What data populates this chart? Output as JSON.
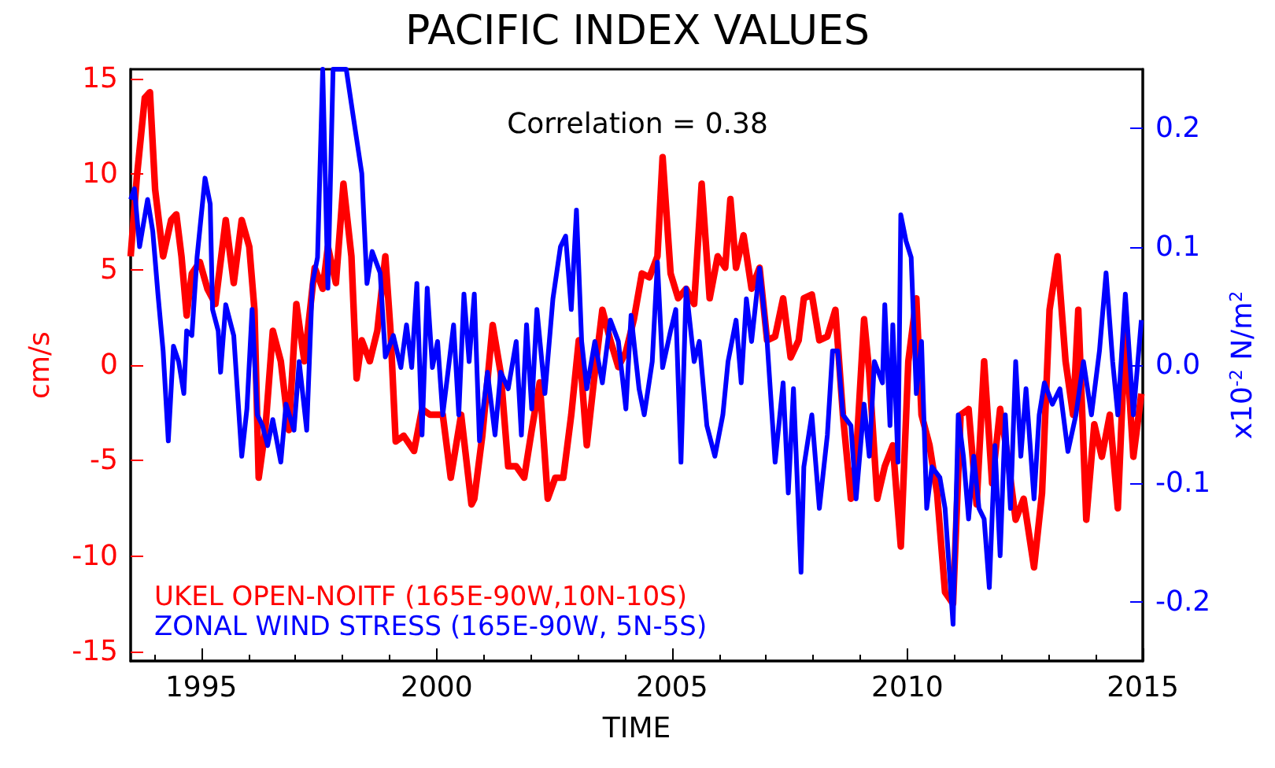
{
  "chart_data": {
    "type": "line",
    "title": "PACIFIC INDEX VALUES",
    "xlabel": "TIME",
    "ylabel": "cm/s",
    "y2label": "x10$^{-2}$ N/m$^{2}$",
    "annotations": [
      "Correlation = 0.38"
    ],
    "xlim": [
      1993.5,
      2015
    ],
    "xticks": [
      1995,
      2000,
      2005,
      2010,
      2015
    ],
    "ylim": [
      -15.5,
      15.5
    ],
    "yticks": [
      -15,
      -10,
      -5,
      0,
      5,
      10,
      15
    ],
    "y2lim": [
      -0.25,
      0.25
    ],
    "y2ticks": [
      -0.2,
      -0.1,
      {
        "value": 0,
        "label": "0.0"
      },
      0.1,
      0.2
    ],
    "grid": false,
    "legend": "bottom left",
    "marker": "none",
    "line_style": "solid",
    "series": [
      {
        "name": "UKEL OPEN-NOITF (165E-90W,10N-10S)",
        "color": "#ff0000",
        "x": [
          1993.5,
          1993.63,
          1993.8,
          1993.91,
          1994.02,
          1994.19,
          1994.36,
          1994.47,
          1994.58,
          1994.69,
          1994.8,
          1994.97,
          1995.13,
          1995.3,
          1995.52,
          1995.69,
          1995.86,
          1996.02,
          1996.13,
          1996.22,
          1996.36,
          1996.52,
          1996.69,
          1996.86,
          1997.02,
          1997.19,
          1997.41,
          1997.58,
          1997.69,
          1997.86,
          1998.02,
          1998.19,
          1998.3,
          1998.41,
          1998.58,
          1998.74,
          1998.91,
          1999.02,
          1999.13,
          1999.3,
          1999.52,
          1999.69,
          1999.86,
          2000.13,
          2000.3,
          2000.52,
          2000.74,
          2000.8,
          2000.97,
          2001.19,
          2001.36,
          2001.52,
          2001.69,
          2001.86,
          2002.02,
          2002.19,
          2002.36,
          2002.52,
          2002.69,
          2002.86,
          2003.02,
          2003.19,
          2003.36,
          2003.52,
          2003.69,
          2003.86,
          2004.02,
          2004.19,
          2004.36,
          2004.52,
          2004.69,
          2004.8,
          2004.97,
          2005.13,
          2005.3,
          2005.47,
          2005.63,
          2005.8,
          2005.97,
          2006.13,
          2006.24,
          2006.36,
          2006.52,
          2006.69,
          2006.86,
          2007.02,
          2007.19,
          2007.36,
          2007.52,
          2007.69,
          2007.8,
          2007.97,
          2008.13,
          2008.3,
          2008.47,
          2008.63,
          2008.8,
          2008.91,
          2009.08,
          2009.19,
          2009.36,
          2009.52,
          2009.69,
          2009.86,
          2010.02,
          2010.19,
          2010.3,
          2010.47,
          2010.63,
          2010.8,
          2010.97,
          2011.13,
          2011.3,
          2011.47,
          2011.63,
          2011.8,
          2011.97,
          2012.13,
          2012.3,
          2012.47,
          2012.69,
          2012.86,
          2013.02,
          2013.19,
          2013.36,
          2013.52,
          2013.63,
          2013.8,
          2013.97,
          2014.13,
          2014.3,
          2014.47,
          2014.63,
          2014.8,
          2014.97
        ],
        "values": [
          5.7,
          9.8,
          14.0,
          14.3,
          9.2,
          5.7,
          7.6,
          7.9,
          5.7,
          2.6,
          4.8,
          5.4,
          4.0,
          3.2,
          7.6,
          4.3,
          7.6,
          6.2,
          2.9,
          -5.9,
          -3.4,
          1.8,
          0.2,
          -3.4,
          3.2,
          0.2,
          5.1,
          4.0,
          6.2,
          4.3,
          9.5,
          5.7,
          -0.7,
          1.3,
          0.2,
          1.8,
          5.7,
          1.8,
          -4.0,
          -3.7,
          -4.5,
          -2.3,
          -2.6,
          -2.6,
          -5.9,
          -2.6,
          -7.3,
          -7.0,
          -3.7,
          2.1,
          -0.4,
          -5.3,
          -5.3,
          -5.9,
          -3.4,
          -0.9,
          -7.0,
          -5.9,
          -5.9,
          -2.6,
          1.3,
          -4.2,
          -0.4,
          2.9,
          1.3,
          -0.1,
          0.7,
          2.4,
          4.8,
          4.6,
          5.7,
          10.9,
          4.8,
          3.5,
          4.0,
          3.2,
          9.5,
          3.5,
          5.7,
          5.1,
          8.7,
          5.1,
          6.8,
          4.0,
          5.1,
          1.3,
          1.5,
          3.5,
          0.4,
          1.3,
          3.5,
          3.7,
          1.3,
          1.5,
          2.9,
          -2.6,
          -7.0,
          -4.8,
          2.4,
          -0.4,
          -7.0,
          -5.3,
          -4.2,
          -9.5,
          0.2,
          3.5,
          -2.6,
          -4.2,
          -6.7,
          -11.9,
          -12.5,
          -2.6,
          -2.3,
          -7.3,
          0.2,
          -6.2,
          -2.3,
          -4.8,
          -8.1,
          -7.0,
          -10.6,
          -6.7,
          2.9,
          5.7,
          0.2,
          -2.6,
          2.9,
          -8.1,
          -3.1,
          -4.8,
          -2.6,
          -7.5,
          1.8,
          -4.8,
          -1.5
        ]
      },
      {
        "name": "ZONAL WIND STRESS (165E-90W, 5N-5S)",
        "color": "#0000ff",
        "axis": "y2",
        "x": [
          1993.5,
          1993.58,
          1993.69,
          1993.86,
          1993.97,
          1994.08,
          1994.19,
          1994.3,
          1994.41,
          1994.52,
          1994.63,
          1994.69,
          1994.8,
          1994.91,
          1995.08,
          1995.19,
          1995.24,
          1995.36,
          1995.41,
          1995.52,
          1995.69,
          1995.86,
          1995.97,
          1996.08,
          1996.19,
          1996.3,
          1996.41,
          1996.52,
          1996.69,
          1996.8,
          1996.97,
          1997.08,
          1997.24,
          1997.36,
          1997.47,
          1997.58,
          1997.69,
          1997.8,
          1997.97,
          1998.08,
          1998.24,
          1998.41,
          1998.52,
          1998.63,
          1998.8,
          1998.91,
          1999.08,
          1999.24,
          1999.36,
          1999.47,
          1999.58,
          1999.69,
          1999.8,
          1999.91,
          2000.02,
          2000.13,
          2000.24,
          2000.36,
          2000.47,
          2000.58,
          2000.69,
          2000.8,
          2000.91,
          2001.08,
          2001.24,
          2001.36,
          2001.52,
          2001.69,
          2001.8,
          2001.91,
          2002.02,
          2002.13,
          2002.3,
          2002.47,
          2002.63,
          2002.74,
          2002.86,
          2002.97,
          2003.08,
          2003.19,
          2003.36,
          2003.52,
          2003.69,
          2003.86,
          2004.02,
          2004.13,
          2004.3,
          2004.41,
          2004.58,
          2004.69,
          2004.8,
          2004.97,
          2005.08,
          2005.19,
          2005.3,
          2005.47,
          2005.58,
          2005.74,
          2005.91,
          2006.08,
          2006.19,
          2006.36,
          2006.47,
          2006.58,
          2006.69,
          2006.86,
          2007.02,
          2007.19,
          2007.36,
          2007.47,
          2007.58,
          2007.74,
          2007.8,
          2007.97,
          2008.13,
          2008.3,
          2008.41,
          2008.52,
          2008.63,
          2008.8,
          2008.91,
          2009.08,
          2009.19,
          2009.3,
          2009.47,
          2009.52,
          2009.63,
          2009.69,
          2009.8,
          2009.86,
          2009.97,
          2010.08,
          2010.19,
          2010.3,
          2010.41,
          2010.52,
          2010.69,
          2010.8,
          2010.97,
          2011.08,
          2011.19,
          2011.3,
          2011.41,
          2011.52,
          2011.63,
          2011.74,
          2011.86,
          2011.97,
          2012.08,
          2012.19,
          2012.3,
          2012.41,
          2012.52,
          2012.69,
          2012.8,
          2012.91,
          2013.08,
          2013.24,
          2013.41,
          2013.58,
          2013.74,
          2013.91,
          2014.08,
          2014.22,
          2014.36,
          2014.47,
          2014.63,
          2014.8,
          2014.97
        ],
        "values": [
          0.14,
          0.149,
          0.1,
          0.14,
          0.113,
          0.06,
          0.012,
          -0.064,
          0.016,
          0.003,
          -0.024,
          0.029,
          0.025,
          0.091,
          0.158,
          0.136,
          0.047,
          0.029,
          -0.006,
          0.051,
          0.025,
          -0.077,
          -0.037,
          0.047,
          -0.042,
          -0.051,
          -0.068,
          -0.046,
          -0.082,
          -0.033,
          -0.055,
          0.003,
          -0.055,
          0.069,
          0.091,
          0.25,
          0.065,
          0.25,
          0.25,
          0.25,
          0.207,
          0.162,
          0.069,
          0.096,
          0.078,
          0.007,
          0.025,
          -0.002,
          0.034,
          -0.002,
          0.069,
          -0.059,
          0.065,
          -0.002,
          0.02,
          -0.042,
          -0.006,
          0.034,
          -0.042,
          0.06,
          0.003,
          0.06,
          -0.064,
          -0.006,
          -0.059,
          -0.006,
          -0.02,
          0.02,
          -0.059,
          0.034,
          -0.037,
          0.047,
          -0.024,
          0.056,
          0.1,
          0.109,
          0.047,
          0.131,
          0.02,
          -0.02,
          0.02,
          -0.015,
          0.038,
          0.02,
          -0.037,
          0.042,
          -0.02,
          -0.042,
          0.003,
          0.087,
          -0.002,
          0.029,
          0.047,
          -0.082,
          0.065,
          0.003,
          0.02,
          -0.051,
          -0.077,
          -0.042,
          0.003,
          0.038,
          -0.015,
          0.056,
          0.02,
          0.082,
          0.02,
          -0.082,
          -0.015,
          -0.108,
          -0.02,
          -0.175,
          -0.086,
          -0.042,
          -0.121,
          -0.059,
          0.012,
          0.012,
          -0.042,
          -0.051,
          -0.113,
          -0.033,
          -0.077,
          0.003,
          -0.015,
          0.051,
          -0.051,
          0.034,
          -0.082,
          0.127,
          0.105,
          0.091,
          -0.024,
          0.02,
          -0.121,
          -0.086,
          -0.095,
          -0.121,
          -0.219,
          -0.042,
          -0.077,
          -0.13,
          -0.077,
          -0.121,
          -0.13,
          -0.188,
          -0.068,
          -0.161,
          -0.042,
          -0.121,
          0.003,
          -0.077,
          -0.02,
          -0.113,
          -0.042,
          -0.015,
          -0.033,
          -0.02,
          -0.073,
          -0.042,
          0.003,
          -0.042,
          0.012,
          0.078,
          0.003,
          -0.042,
          0.06,
          -0.042,
          0.038
        ]
      }
    ]
  }
}
